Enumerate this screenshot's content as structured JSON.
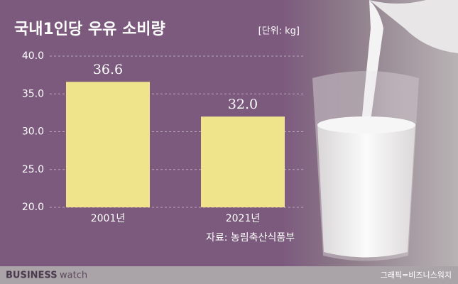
{
  "chart_data": {
    "type": "bar",
    "title": "국내1인당 우유 소비량",
    "unit": "[단위: kg]",
    "categories": [
      "2001년",
      "2021년"
    ],
    "values": [
      36.6,
      32.0
    ],
    "value_labels": [
      "36.6",
      "32.0"
    ],
    "color": "#efe38b",
    "ylim": [
      20,
      40
    ],
    "yticks": [
      {
        "value": 20,
        "label": "20.0"
      },
      {
        "value": 25,
        "label": "25.0"
      },
      {
        "value": 30,
        "label": "30.0"
      },
      {
        "value": 35,
        "label": "35.0"
      },
      {
        "value": 40,
        "label": "40.0"
      }
    ],
    "grid": true,
    "source": "자료: 농림축산식품부"
  },
  "footer": {
    "brand_bold": "BUSINESS",
    "brand_light": "watch",
    "credit": "그래픽=비즈니스워치"
  }
}
